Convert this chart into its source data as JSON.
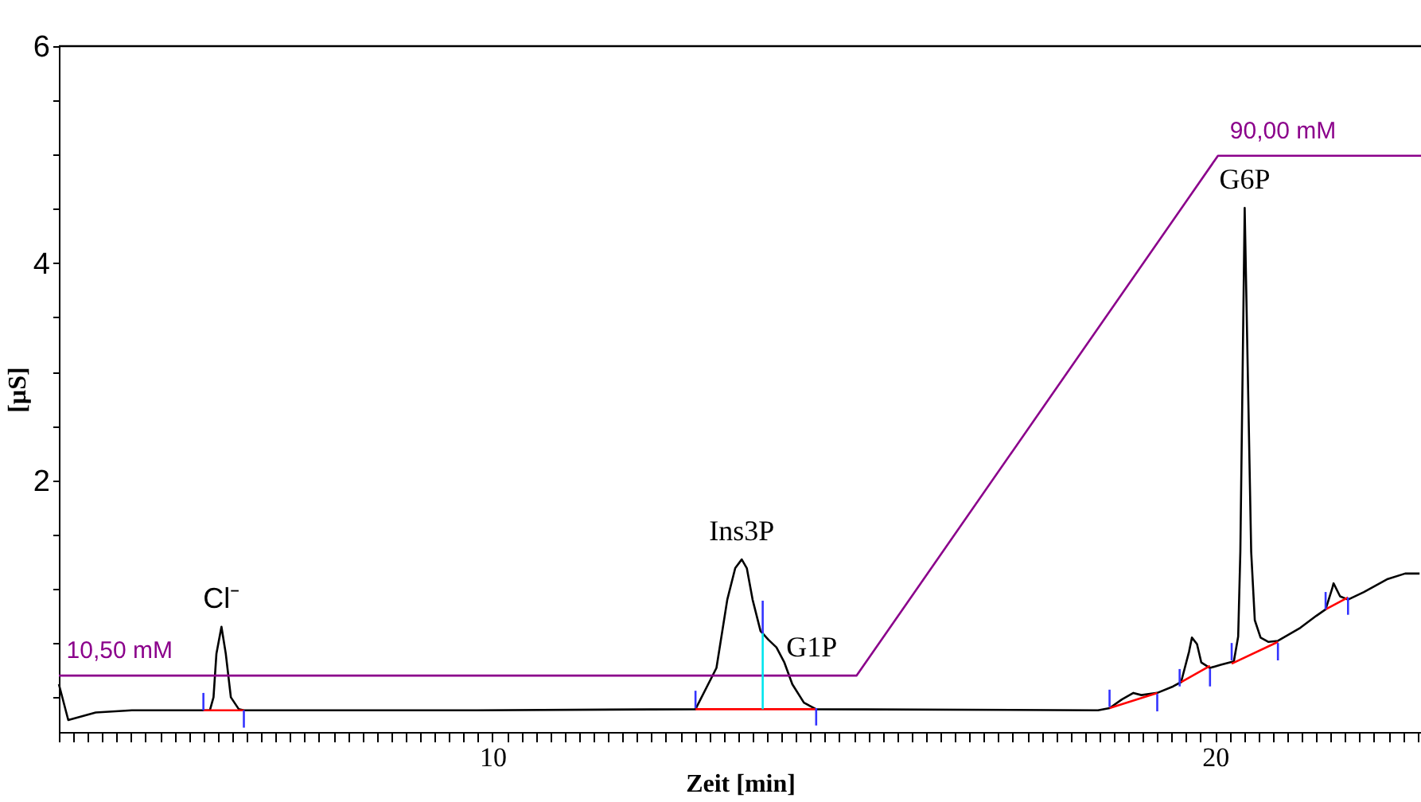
{
  "chart_data": {
    "type": "line",
    "xlabel": "Zeit [min]",
    "ylabel": "[µS]",
    "xlim": [
      4,
      22.85
    ],
    "ylim": [
      -0.32,
      6
    ],
    "xticks": [
      {
        "value": 4,
        "label": null
      },
      {
        "value": 4.2,
        "label": null
      },
      {
        "value": 4.4,
        "label": null
      },
      {
        "value": 4.6,
        "label": null
      },
      {
        "value": 4.8,
        "label": null
      },
      {
        "value": 5,
        "label": null
      },
      {
        "value": 5.2,
        "label": null
      },
      {
        "value": 5.4,
        "label": null
      },
      {
        "value": 5.6,
        "label": null
      },
      {
        "value": 5.8,
        "label": null
      },
      {
        "value": 6,
        "label": null
      },
      {
        "value": 6.2,
        "label": null
      },
      {
        "value": 6.4,
        "label": null
      },
      {
        "value": 6.6,
        "label": null
      },
      {
        "value": 6.8,
        "label": null
      },
      {
        "value": 7,
        "label": null
      },
      {
        "value": 7.2,
        "label": null
      },
      {
        "value": 7.4,
        "label": null
      },
      {
        "value": 7.6,
        "label": null
      },
      {
        "value": 7.8,
        "label": null
      },
      {
        "value": 8,
        "label": null
      },
      {
        "value": 8.2,
        "label": null
      },
      {
        "value": 8.4,
        "label": null
      },
      {
        "value": 8.6,
        "label": null
      },
      {
        "value": 8.8,
        "label": null
      },
      {
        "value": 9,
        "label": null
      },
      {
        "value": 9.2,
        "label": null
      },
      {
        "value": 9.4,
        "label": null
      },
      {
        "value": 9.6,
        "label": null
      },
      {
        "value": 9.8,
        "label": null
      },
      10,
      {
        "value": 10.2,
        "label": null
      },
      {
        "value": 10.4,
        "label": null
      },
      {
        "value": 10.6,
        "label": null
      },
      {
        "value": 10.8,
        "label": null
      },
      {
        "value": 11,
        "label": null
      },
      {
        "value": 11.2,
        "label": null
      },
      {
        "value": 11.4,
        "label": null
      },
      {
        "value": 11.6,
        "label": null
      },
      {
        "value": 11.8,
        "label": null
      },
      {
        "value": 12,
        "label": null
      },
      {
        "value": 12.2,
        "label": null
      },
      {
        "value": 12.4,
        "label": null
      },
      {
        "value": 12.6,
        "label": null
      },
      {
        "value": 12.8,
        "label": null
      },
      {
        "value": 13,
        "label": null
      },
      {
        "value": 13.2,
        "label": null
      },
      {
        "value": 13.4,
        "label": null
      },
      {
        "value": 13.6,
        "label": null
      },
      {
        "value": 13.8,
        "label": null
      },
      {
        "value": 14,
        "label": null
      },
      {
        "value": 14.2,
        "label": null
      },
      {
        "value": 14.4,
        "label": null
      },
      {
        "value": 14.6,
        "label": null
      },
      {
        "value": 14.8,
        "label": null
      },
      {
        "value": 15,
        "label": null
      },
      {
        "value": 15.2,
        "label": null
      },
      {
        "value": 15.4,
        "label": null
      },
      {
        "value": 15.6,
        "label": null
      },
      {
        "value": 15.8,
        "label": null
      },
      {
        "value": 16,
        "label": null
      },
      {
        "value": 16.2,
        "label": null
      },
      {
        "value": 16.4,
        "label": null
      },
      {
        "value": 16.6,
        "label": null
      },
      {
        "value": 16.8,
        "label": null
      },
      {
        "value": 17,
        "label": null
      },
      {
        "value": 17.2,
        "label": null
      },
      {
        "value": 17.4,
        "label": null
      },
      {
        "value": 17.6,
        "label": null
      },
      {
        "value": 17.8,
        "label": null
      },
      {
        "value": 18,
        "label": null
      },
      {
        "value": 18.2,
        "label": null
      },
      {
        "value": 18.4,
        "label": null
      },
      {
        "value": 18.6,
        "label": null
      },
      {
        "value": 18.8,
        "label": null
      },
      {
        "value": 19,
        "label": null
      },
      {
        "value": 19.2,
        "label": null
      },
      {
        "value": 19.4,
        "label": null
      },
      {
        "value": 19.6,
        "label": null
      },
      {
        "value": 19.8,
        "label": null
      },
      20,
      {
        "value": 20.2,
        "label": null
      },
      {
        "value": 20.4,
        "label": null
      },
      {
        "value": 20.6,
        "label": null
      },
      {
        "value": 20.8,
        "label": null
      },
      {
        "value": 21,
        "label": null
      },
      {
        "value": 21.2,
        "label": null
      },
      {
        "value": 21.4,
        "label": null
      },
      {
        "value": 21.6,
        "label": null
      },
      {
        "value": 21.8,
        "label": null
      },
      {
        "value": 22,
        "label": null
      },
      {
        "value": 22.2,
        "label": null
      },
      {
        "value": 22.4,
        "label": null
      },
      {
        "value": 22.6,
        "label": null
      },
      {
        "value": 22.8,
        "label": null
      }
    ],
    "yticks": [
      {
        "value": 0,
        "label": null
      },
      {
        "value": 0.5,
        "label": null
      },
      {
        "value": 1,
        "label": null
      },
      {
        "value": 1.5,
        "label": null
      },
      2,
      {
        "value": 2.5,
        "label": null
      },
      {
        "value": 3,
        "label": null
      },
      {
        "value": 3.5,
        "label": null
      },
      4,
      {
        "value": 4.5,
        "label": null
      },
      {
        "value": 5,
        "label": null
      },
      {
        "value": 5.5,
        "label": null
      },
      6
    ],
    "grid": false,
    "series": [
      {
        "color": "#000000",
        "x": [
          4.0,
          4.13,
          4.51,
          5.01,
          6.0,
          6.09,
          6.14,
          6.18,
          6.25,
          6.31,
          6.38,
          6.49,
          6.56,
          9.79,
          12.81,
          13.1,
          13.25,
          13.36,
          13.45,
          13.52,
          13.6,
          13.71,
          13.82,
          13.93,
          14.04,
          14.15,
          14.31,
          14.48,
          18.38,
          18.54,
          18.71,
          18.87,
          18.98,
          19.2,
          19.42,
          19.53,
          19.64,
          19.68,
          19.75,
          19.81,
          19.93,
          20.08,
          20.26,
          20.32,
          20.35,
          20.41,
          20.5,
          20.55,
          20.63,
          20.74,
          20.87,
          21.18,
          21.4,
          21.53,
          21.62,
          21.64,
          21.73,
          21.84,
          22.06,
          22.39,
          22.63,
          22.83
        ],
        "values": [
          0.12,
          -0.21,
          -0.14,
          -0.12,
          -0.12,
          -0.12,
          0.0,
          0.4,
          0.65,
          0.4,
          0.0,
          -0.11,
          -0.12,
          -0.12,
          -0.11,
          0.27,
          0.9,
          1.19,
          1.27,
          1.19,
          0.9,
          0.61,
          0.53,
          0.46,
          0.32,
          0.12,
          -0.05,
          -0.11,
          -0.12,
          -0.1,
          -0.02,
          0.04,
          0.02,
          0.04,
          0.1,
          0.14,
          0.42,
          0.55,
          0.49,
          0.32,
          0.27,
          0.3,
          0.33,
          0.56,
          1.34,
          4.51,
          1.34,
          0.71,
          0.55,
          0.51,
          0.52,
          0.64,
          0.75,
          0.81,
          1.0,
          1.05,
          0.93,
          0.9,
          0.97,
          1.09,
          1.14,
          1.14
        ]
      },
      {
        "color": "#8b008b",
        "x": [
          4.0,
          15.04,
          20.04,
          22.85
        ],
        "values": [
          0.2,
          0.2,
          4.99,
          4.99
        ]
      },
      {
        "color": "#ff0000",
        "x": [
          6.0,
          6.56,
          6.6,
          12.81,
          14.48,
          14.5,
          18.54,
          19.2,
          19.3,
          19.53,
          19.93,
          20.0,
          20.23,
          20.87,
          21.0,
          21.53,
          21.84
        ],
        "values": [
          -0.12,
          -0.12,
          null,
          -0.11,
          -0.11,
          null,
          -0.1,
          0.04,
          null,
          0.14,
          0.29,
          null,
          0.31,
          0.51,
          null,
          0.81,
          0.92
        ]
      },
      {
        "color": "#00e5ee",
        "x": [
          13.74,
          13.74
        ],
        "values": [
          -0.11,
          0.59
        ]
      },
      {
        "color": "#3333ff",
        "x": [
          6.0,
          6.0
        ],
        "values": [
          -0.12,
          0.04
        ]
      },
      {
        "color": "#3333ff",
        "x": [
          6.56,
          6.56
        ],
        "values": [
          -0.28,
          -0.12
        ]
      },
      {
        "color": "#3333ff",
        "x": [
          12.81,
          12.81
        ],
        "values": [
          -0.1,
          0.06
        ]
      },
      {
        "color": "#3333ff",
        "x": [
          14.48,
          14.48
        ],
        "values": [
          -0.26,
          -0.1
        ]
      },
      {
        "color": "#3333ff",
        "x": [
          13.74,
          13.74
        ],
        "values": [
          0.59,
          0.89
        ]
      },
      {
        "color": "#3333ff",
        "x": [
          18.54,
          18.54
        ],
        "values": [
          -0.09,
          0.07
        ]
      },
      {
        "color": "#3333ff",
        "x": [
          19.2,
          19.2
        ],
        "values": [
          -0.13,
          0.03
        ]
      },
      {
        "color": "#3333ff",
        "x": [
          19.51,
          19.51
        ],
        "values": [
          0.1,
          0.26
        ]
      },
      {
        "color": "#3333ff",
        "x": [
          19.93,
          19.93
        ],
        "values": [
          0.1,
          0.26
        ]
      },
      {
        "color": "#3333ff",
        "x": [
          20.23,
          20.23
        ],
        "values": [
          0.34,
          0.5
        ]
      },
      {
        "color": "#3333ff",
        "x": [
          20.87,
          20.87
        ],
        "values": [
          0.34,
          0.5
        ]
      },
      {
        "color": "#3333ff",
        "x": [
          21.53,
          21.53
        ],
        "values": [
          0.81,
          0.97
        ]
      },
      {
        "color": "#3333ff",
        "x": [
          21.84,
          21.84
        ],
        "values": [
          0.76,
          0.92
        ]
      }
    ],
    "annotations": [
      {
        "text": "Cl⁻",
        "x": 6.25,
        "y": 0.65
      },
      {
        "text": "Ins3P",
        "x": 13.45,
        "y": 1.27
      },
      {
        "text": "G1P",
        "x": 14.42,
        "y": 0.2
      },
      {
        "text": "G6P",
        "x": 20.41,
        "y": 4.51
      },
      {
        "text": "10,50 mM",
        "x": 4.84,
        "y": 0.2
      },
      {
        "text": "90,00 mM",
        "x": 20.94,
        "y": 4.99
      }
    ]
  }
}
